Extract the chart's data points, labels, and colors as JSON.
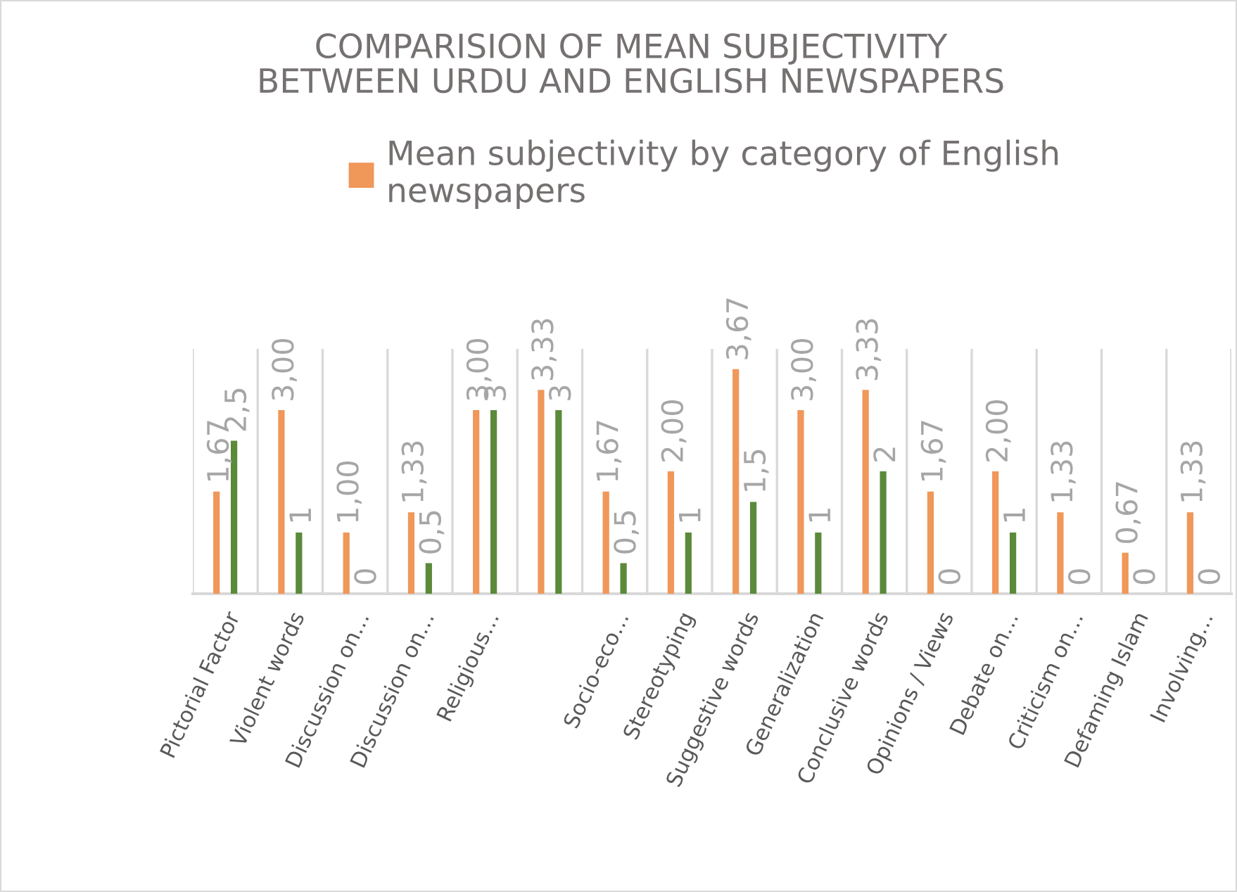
{
  "chart_data": {
    "type": "bar",
    "title": "COMPARISION OF MEAN SUBJECTIVITY\nBETWEEN URDU AND ENGLISH NEWSPAPERS",
    "categories": [
      "Pictorial Factor",
      "Violent words",
      "Discussion on…",
      "Discussion on…",
      "Religious…",
      null,
      "Socio-eco…",
      "Stereotyping",
      "Suggestive words",
      "Generalization",
      "Conclusive words",
      "Opinions / Views",
      "Debate on…",
      "Criticism on…",
      "Defaming Islam",
      "Involving…"
    ],
    "series": [
      {
        "name": "Mean subjectivity by category of English\nnewspapers",
        "color": "#f0975a",
        "values": [
          1.67,
          3.0,
          1.0,
          1.33,
          3.0,
          3.33,
          1.67,
          2.0,
          3.67,
          3.0,
          3.33,
          1.67,
          2.0,
          1.33,
          0.67,
          1.33
        ],
        "value_labels": [
          "1,67",
          "3,00",
          "1,00",
          "1,33",
          "3,00",
          "3,33",
          "1,67",
          "2,00",
          "3,67",
          "3,00",
          "3,33",
          "1,67",
          "2,00",
          "1,33",
          "0,67",
          "1,33"
        ]
      },
      {
        "color": "#5b8a3a",
        "values": [
          2.5,
          1,
          0,
          0.5,
          3,
          3,
          0.5,
          1,
          1.5,
          1,
          2,
          0,
          1,
          0,
          0,
          0
        ],
        "value_labels": [
          "2,5",
          "1",
          "0",
          "0,5",
          "3",
          "3",
          "0,5",
          "1",
          "1,5",
          "1",
          "2",
          "0",
          "1",
          "0",
          "0",
          "0"
        ]
      }
    ],
    "grid": "x",
    "legend": "top"
  }
}
